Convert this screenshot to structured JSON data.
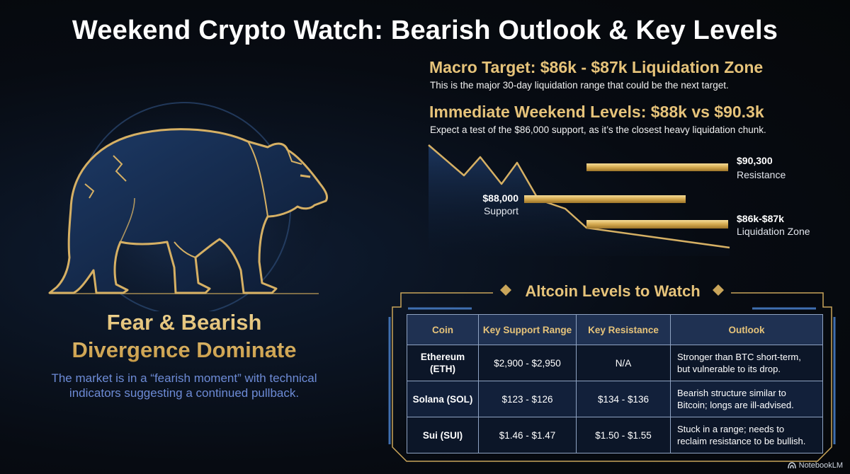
{
  "header": {
    "title": "Weekend Crypto Watch: Bearish Outlook & Key Levels"
  },
  "left_panel": {
    "heading_line1": "Fear & Bearish",
    "heading_line2": "Divergence Dominate",
    "description": "The market is in a “fearish moment” with technical indicators suggesting a continued pullback."
  },
  "macro": {
    "heading": "Macro Target: $86k - $87k Liquidation Zone",
    "text": "This is the major 30-day liquidation range that could be the next target."
  },
  "immediate": {
    "heading": "Immediate Weekend Levels: $88k vs $90.3k",
    "text": "Expect a test of the $86,000 support, as it’s the closest heavy liquidation chunk."
  },
  "levels_chart": {
    "levels": [
      {
        "price": "$90,300",
        "label": "Resistance"
      },
      {
        "price": "$88,000",
        "label": "Support"
      },
      {
        "price": "$86k-$87k",
        "label": "Liquidation Zone"
      }
    ]
  },
  "altcoins": {
    "title": "Altcoin Levels to Watch",
    "columns": [
      "Coin",
      "Key Support Range",
      "Key Resistance",
      "Outlook"
    ],
    "rows": [
      {
        "coin_line1": "Ethereum",
        "coin_line2": "(ETH)",
        "support": "$2,900 - $2,950",
        "resistance": "N/A",
        "outlook_line1": "Stronger than BTC short-term,",
        "outlook_line2": "but vulnerable to its drop."
      },
      {
        "coin_line1": "Solana (SOL)",
        "coin_line2": "",
        "support": "$123 - $126",
        "resistance": "$134 - $136",
        "outlook_line1": "Bearish structure similar to",
        "outlook_line2": "Bitcoin; longs are ill-advised."
      },
      {
        "coin_line1": "Sui (SUI)",
        "coin_line2": "",
        "support": "$1.46 - $1.47",
        "resistance": "$1.50 - $1.55",
        "outlook_line1": "Stuck in a range; needs to",
        "outlook_line2": "reclaim resistance to be bullish."
      }
    ]
  },
  "branding": {
    "name": "NotebookLM"
  },
  "colors": {
    "gold": "#e6c37a",
    "navy": "#1f3152",
    "blue_text": "#6d8bd6",
    "background": "#070b12"
  }
}
